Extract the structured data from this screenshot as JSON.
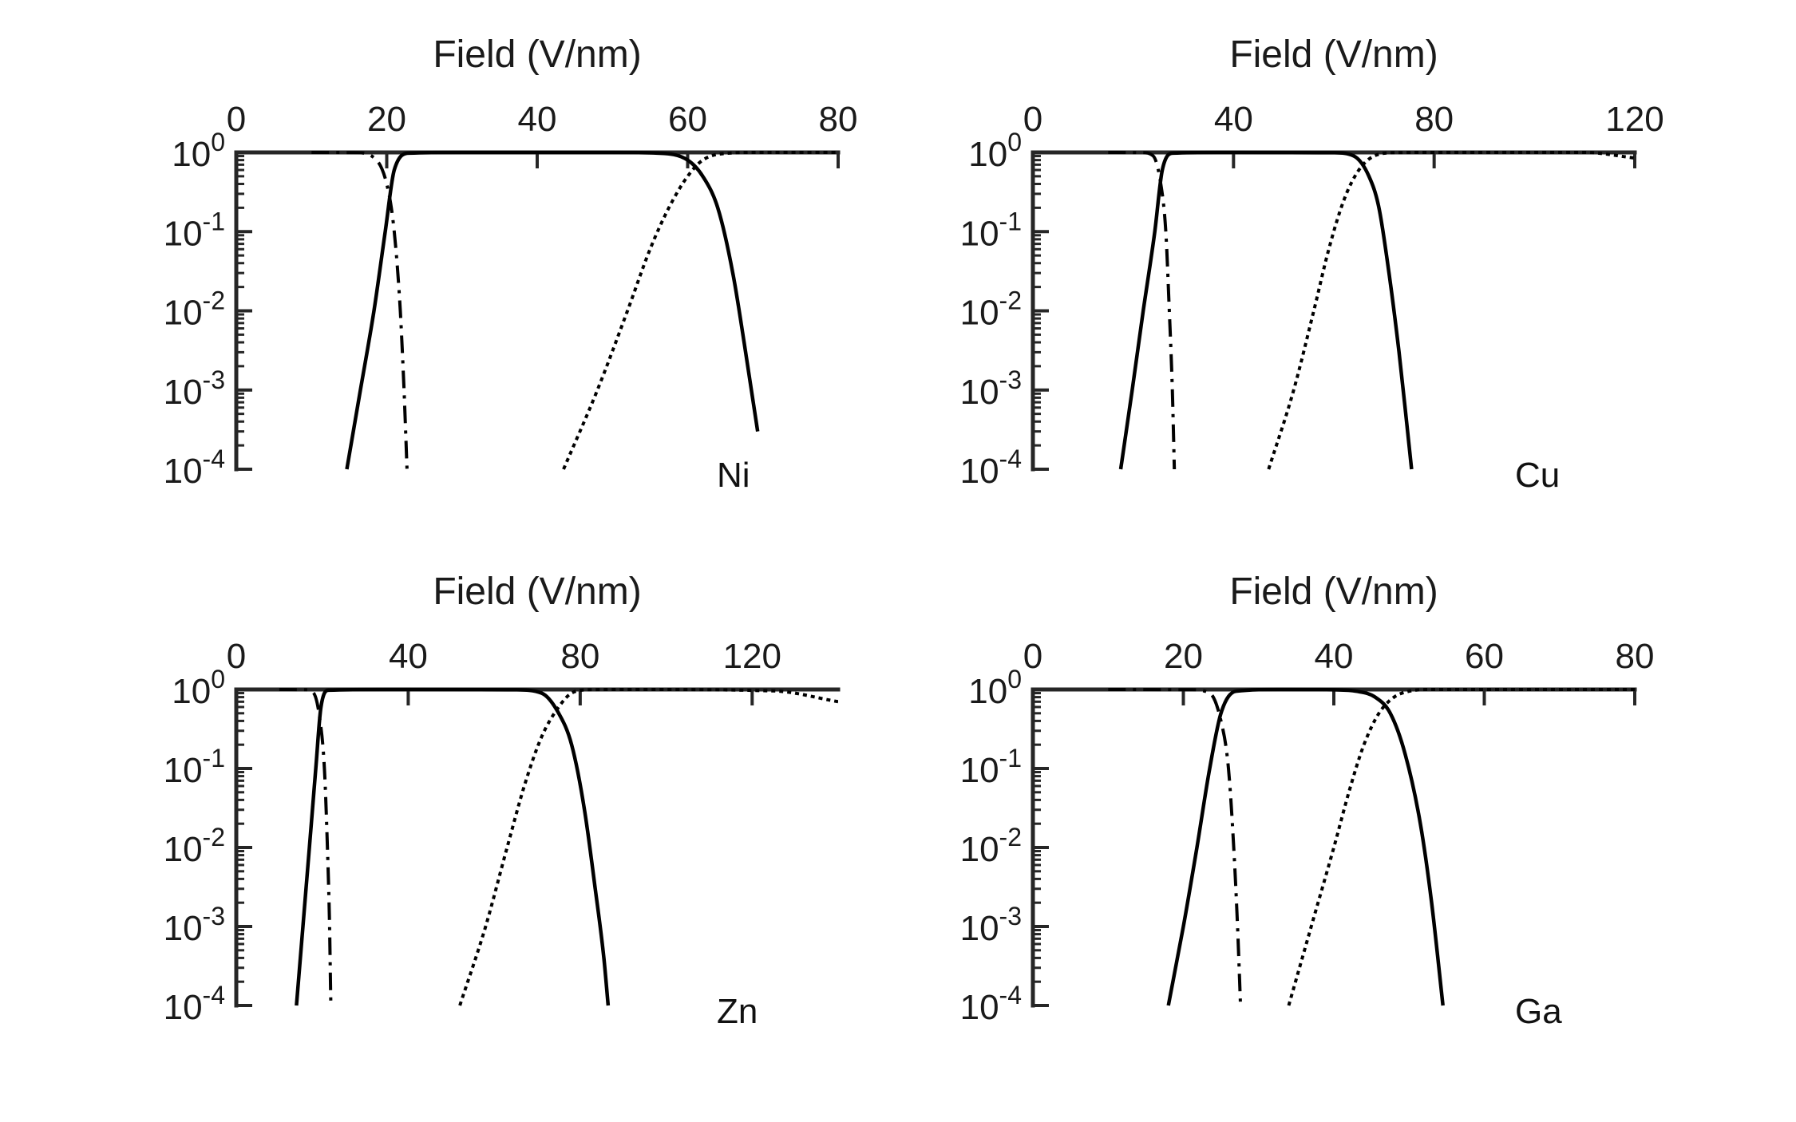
{
  "chart_data": [
    {
      "type": "line",
      "panel_label": "Ni",
      "xlabel": "Field (V/nm)",
      "xlim": [
        0,
        80
      ],
      "xticks": [
        "0",
        "20",
        "40",
        "60",
        "80"
      ],
      "yscale": "log",
      "ylim": [
        0.0001,
        1
      ],
      "yticks": [
        {
          "base": "10",
          "exp": "0"
        },
        {
          "base": "10",
          "exp": "-1"
        },
        {
          "base": "10",
          "exp": "-2"
        },
        {
          "base": "10",
          "exp": "-3"
        },
        {
          "base": "10",
          "exp": "-4"
        }
      ],
      "series": [
        {
          "style": "dashdot",
          "x": [
            10,
            16,
            18,
            20,
            21,
            21.8,
            22.3,
            22.7
          ],
          "y": [
            1,
            0.99,
            0.9,
            0.4,
            0.1,
            0.01,
            0.001,
            0.0001
          ]
        },
        {
          "style": "solid",
          "x": [
            14.7,
            16.5,
            18.3,
            19.8,
            21,
            23,
            30,
            50,
            56,
            60,
            62,
            64,
            66,
            67.5,
            69.3
          ],
          "y": [
            0.0001,
            0.001,
            0.01,
            0.1,
            0.6,
            0.98,
            1,
            1,
            0.98,
            0.8,
            0.5,
            0.2,
            0.03,
            0.004,
            0.0003
          ]
        },
        {
          "style": "dotted",
          "x": [
            43.5,
            48,
            52,
            55,
            57.5,
            60,
            62,
            65,
            70,
            80
          ],
          "y": [
            0.0001,
            0.001,
            0.01,
            0.06,
            0.2,
            0.5,
            0.8,
            0.97,
            1,
            1
          ]
        }
      ]
    },
    {
      "type": "line",
      "panel_label": "Cu",
      "xlabel": "Field (V/nm)",
      "xlim": [
        0,
        120
      ],
      "xticks": [
        "0",
        "40",
        "80",
        "120"
      ],
      "yscale": "log",
      "ylim": [
        0.0001,
        1
      ],
      "yticks": [
        {
          "base": "10",
          "exp": "0"
        },
        {
          "base": "10",
          "exp": "-1"
        },
        {
          "base": "10",
          "exp": "-2"
        },
        {
          "base": "10",
          "exp": "-3"
        },
        {
          "base": "10",
          "exp": "-4"
        }
      ],
      "series": [
        {
          "style": "dashdot",
          "x": [
            15,
            22,
            24,
            25.5,
            26.5,
            27.2,
            27.8,
            28.2
          ],
          "y": [
            1,
            0.99,
            0.9,
            0.4,
            0.1,
            0.01,
            0.001,
            0.0001
          ]
        },
        {
          "style": "solid",
          "x": [
            17.5,
            19.8,
            22,
            24.3,
            25.8,
            28,
            40,
            60,
            64,
            67,
            69,
            71,
            73,
            74.5,
            75.5
          ],
          "y": [
            0.0001,
            0.001,
            0.01,
            0.1,
            0.6,
            0.98,
            1,
            0.99,
            0.9,
            0.5,
            0.2,
            0.03,
            0.003,
            0.0004,
            0.0001
          ]
        },
        {
          "style": "dotted",
          "x": [
            47,
            52,
            56,
            59,
            62,
            65,
            68,
            72,
            80,
            110,
            120
          ],
          "y": [
            0.0001,
            0.001,
            0.01,
            0.06,
            0.25,
            0.6,
            0.9,
            0.99,
            1,
            1,
            0.85
          ]
        }
      ]
    },
    {
      "type": "line",
      "panel_label": "Zn",
      "xlabel": "Field (V/nm)",
      "xlim": [
        0,
        140
      ],
      "xticks": [
        "0",
        "40",
        "80",
        "120"
      ],
      "yscale": "log",
      "ylim": [
        0.0001,
        1
      ],
      "yticks": [
        {
          "base": "10",
          "exp": "0"
        },
        {
          "base": "10",
          "exp": "-1"
        },
        {
          "base": "10",
          "exp": "-2"
        },
        {
          "base": "10",
          "exp": "-3"
        },
        {
          "base": "10",
          "exp": "-4"
        }
      ],
      "series": [
        {
          "style": "dashdot",
          "x": [
            10,
            16,
            18,
            19.5,
            20.5,
            21.2,
            21.7,
            22
          ],
          "y": [
            1,
            0.99,
            0.9,
            0.4,
            0.1,
            0.01,
            0.001,
            0.0001
          ]
        },
        {
          "style": "solid",
          "x": [
            14,
            15.5,
            17,
            18.5,
            19.7,
            21.5,
            35,
            65,
            71,
            75,
            78,
            81,
            83.5,
            85.5,
            86.5
          ],
          "y": [
            0.0001,
            0.001,
            0.01,
            0.1,
            0.6,
            0.98,
            1,
            0.99,
            0.9,
            0.5,
            0.2,
            0.03,
            0.003,
            0.0004,
            0.0001
          ]
        },
        {
          "style": "dotted",
          "x": [
            52,
            58,
            63,
            67,
            71,
            75,
            78,
            82,
            90,
            125,
            140
          ],
          "y": [
            0.0001,
            0.001,
            0.01,
            0.06,
            0.25,
            0.6,
            0.9,
            0.99,
            1,
            0.96,
            0.7
          ]
        }
      ]
    },
    {
      "type": "line",
      "panel_label": "Ga",
      "xlabel": "Field (V/nm)",
      "xlim": [
        0,
        80
      ],
      "xticks": [
        "0",
        "20",
        "40",
        "60",
        "80"
      ],
      "yscale": "log",
      "ylim": [
        0.0001,
        1
      ],
      "yticks": [
        {
          "base": "10",
          "exp": "0"
        },
        {
          "base": "10",
          "exp": "-1"
        },
        {
          "base": "10",
          "exp": "-2"
        },
        {
          "base": "10",
          "exp": "-3"
        },
        {
          "base": "10",
          "exp": "-4"
        }
      ],
      "series": [
        {
          "style": "dashdot",
          "x": [
            10,
            21,
            23.5,
            25,
            26,
            26.7,
            27.2,
            27.6
          ],
          "y": [
            1,
            0.99,
            0.9,
            0.4,
            0.1,
            0.01,
            0.001,
            0.0001
          ]
        },
        {
          "style": "solid",
          "x": [
            18,
            20,
            21.8,
            23.5,
            25,
            27,
            33,
            40,
            43,
            45.5,
            47.5,
            49.5,
            51.5,
            53,
            54.5
          ],
          "y": [
            0.0001,
            0.001,
            0.01,
            0.1,
            0.5,
            0.95,
            1,
            0.99,
            0.95,
            0.8,
            0.5,
            0.15,
            0.02,
            0.002,
            0.0001
          ]
        },
        {
          "style": "dotted",
          "x": [
            34,
            37,
            40,
            42,
            44,
            46,
            48,
            50,
            53,
            60,
            80
          ],
          "y": [
            0.0001,
            0.001,
            0.01,
            0.05,
            0.2,
            0.5,
            0.8,
            0.95,
            1,
            1,
            1
          ]
        }
      ]
    }
  ]
}
